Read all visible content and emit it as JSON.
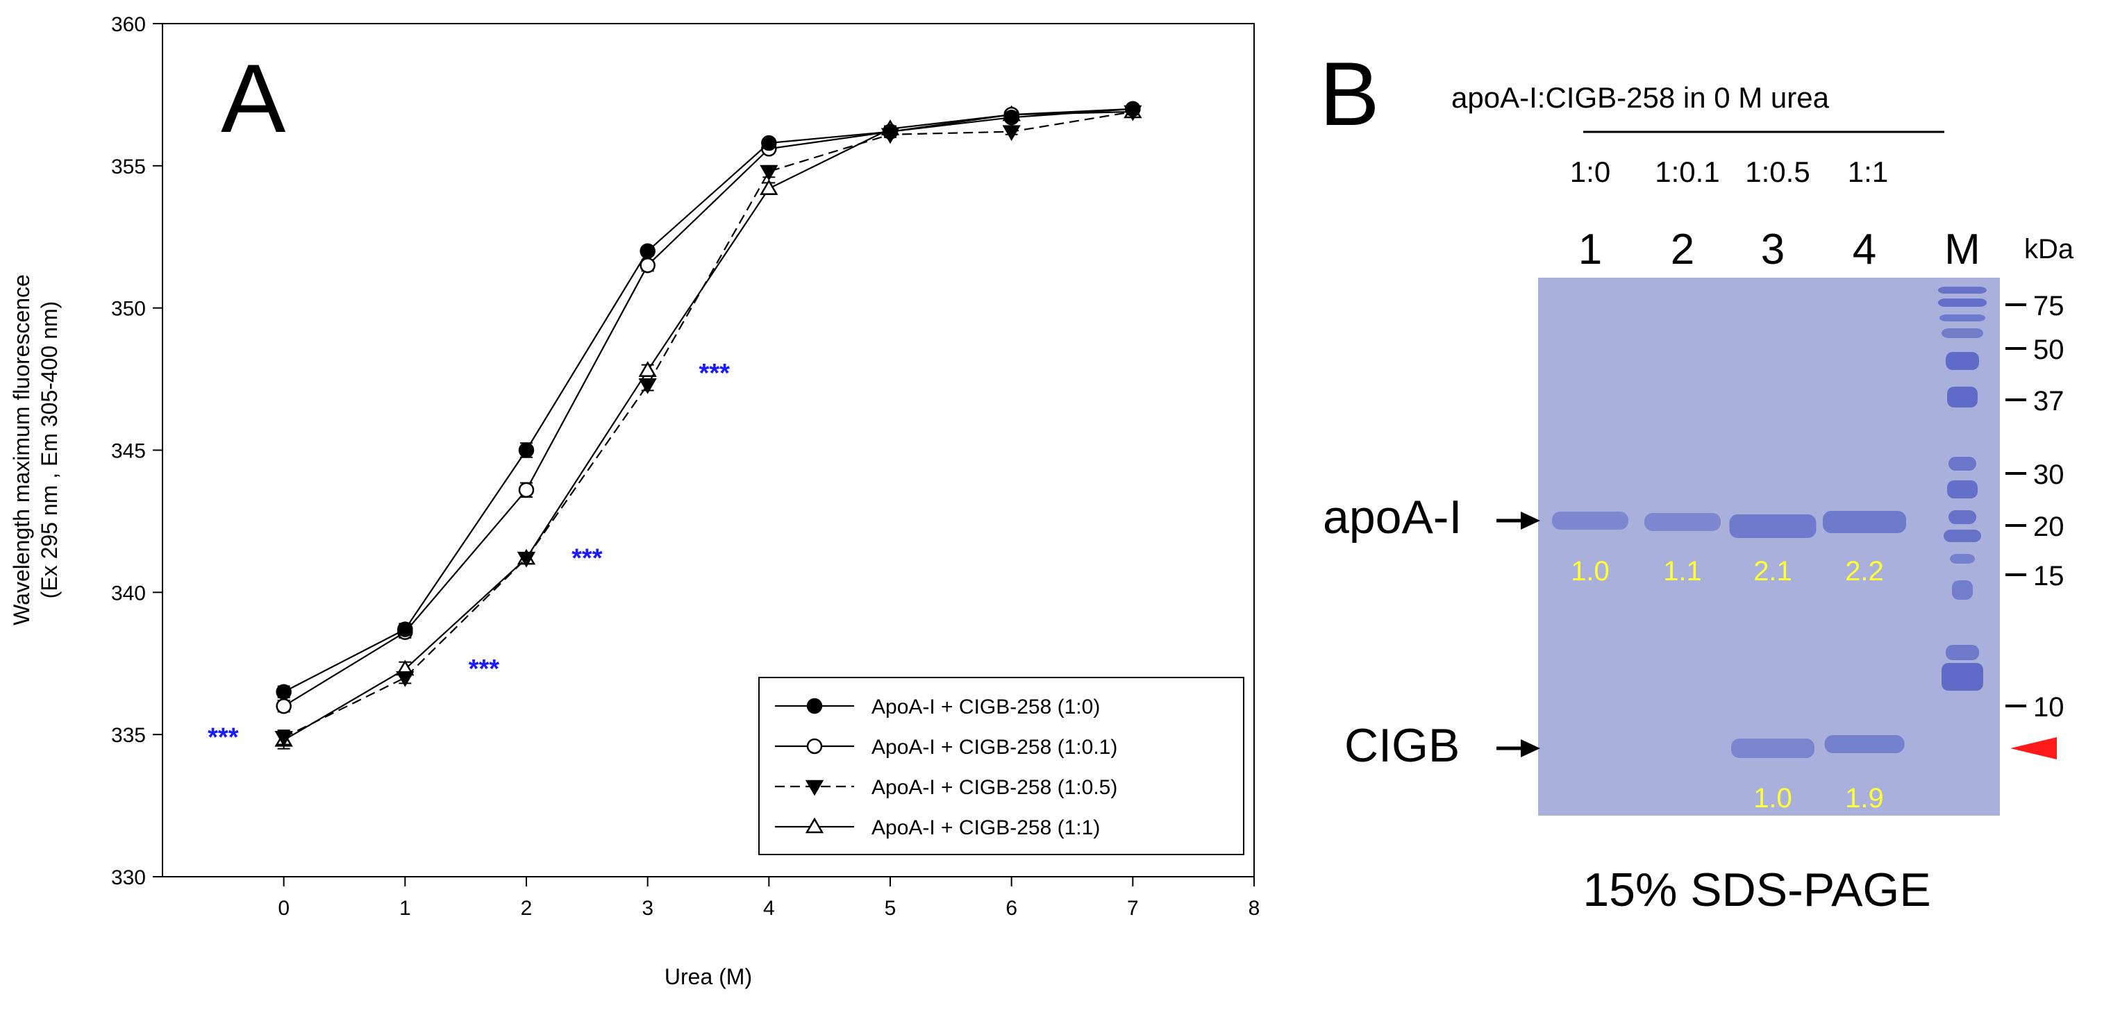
{
  "chart_data": {
    "type": "line",
    "panel_label": "A",
    "xlabel": "Urea (M)",
    "ylabel_line1": "Wavelength maximum fluorescence",
    "ylabel_line2": "(Ex 295 nm , Em 305-400 nm)",
    "xlim": [
      -1,
      8
    ],
    "ylim": [
      330,
      360
    ],
    "x_ticks": [
      0,
      1,
      2,
      3,
      4,
      5,
      6,
      7,
      8
    ],
    "y_ticks": [
      330,
      335,
      340,
      345,
      350,
      355,
      360
    ],
    "x": [
      0,
      1,
      2,
      3,
      4,
      5,
      6,
      7
    ],
    "series": [
      {
        "name": "ApoA-I  +  CIGB-258 (1:0)",
        "marker": "filled-circle",
        "line": "solid",
        "values": [
          336.5,
          338.7,
          345.0,
          352.0,
          355.8,
          356.2,
          356.7,
          357.0
        ],
        "errors": [
          0.2,
          0.2,
          0.25,
          0.15,
          0.15,
          0.1,
          0.1,
          0.1
        ]
      },
      {
        "name": "ApoA-I  +  CIGB-258 (1:0.1)",
        "marker": "open-circle",
        "line": "solid",
        "values": [
          336.0,
          338.6,
          343.6,
          351.5,
          355.6,
          356.2,
          356.8,
          357.0
        ],
        "errors": [
          0.2,
          0.2,
          0.25,
          0.2,
          0.15,
          0.1,
          0.1,
          0.1
        ]
      },
      {
        "name": "ApoA-I  +  CIGB-258 (1:0.5)",
        "marker": "filled-triangle-down",
        "line": "dashed",
        "values": [
          334.9,
          337.0,
          341.2,
          347.3,
          354.8,
          356.1,
          356.2,
          356.9
        ],
        "errors": [
          0.25,
          0.2,
          0.2,
          0.2,
          0.2,
          0.1,
          0.1,
          0.1
        ]
      },
      {
        "name": "ApoA-I  +  CIGB-258 (1:1)",
        "marker": "open-triangle-up",
        "line": "solid",
        "values": [
          334.8,
          337.3,
          341.2,
          347.8,
          354.2,
          356.3,
          356.8,
          356.9
        ],
        "errors": [
          0.3,
          0.25,
          0.2,
          0.2,
          0.2,
          0.1,
          0.1,
          0.1
        ]
      }
    ],
    "significance": [
      {
        "label": "***",
        "x": -0.5,
        "y": 334.6
      },
      {
        "label": "***",
        "x": 1.65,
        "y": 337.0
      },
      {
        "label": "***",
        "x": 2.5,
        "y": 340.9
      },
      {
        "label": "***",
        "x": 3.55,
        "y": 347.4
      }
    ],
    "significance_color": "#1a1aff"
  },
  "gel": {
    "panel_label": "B",
    "header": "apoA-I:CIGB-258  in  0  M  urea",
    "ratios": [
      "1:0",
      "1:0.1",
      "1:0.5",
      "1:1"
    ],
    "lanes": [
      "1",
      "2",
      "3",
      "4",
      "M"
    ],
    "kda_label": "kDa",
    "markers": [
      "75",
      "50",
      "37",
      "30",
      "20",
      "15",
      "10"
    ],
    "band_labels": {
      "apoa": "apoA-I",
      "cigb": "CIGB"
    },
    "apoa_quant": [
      "1.0",
      "1.1",
      "2.1",
      "2.2"
    ],
    "cigb_quant": [
      "1.0",
      "1.9"
    ],
    "quant_color": "#ffff33",
    "gel_color": "#a9b0db",
    "band_color": "#5b68c6",
    "indicator_color": "#ff1a1a",
    "caption": "15% SDS-PAGE"
  }
}
